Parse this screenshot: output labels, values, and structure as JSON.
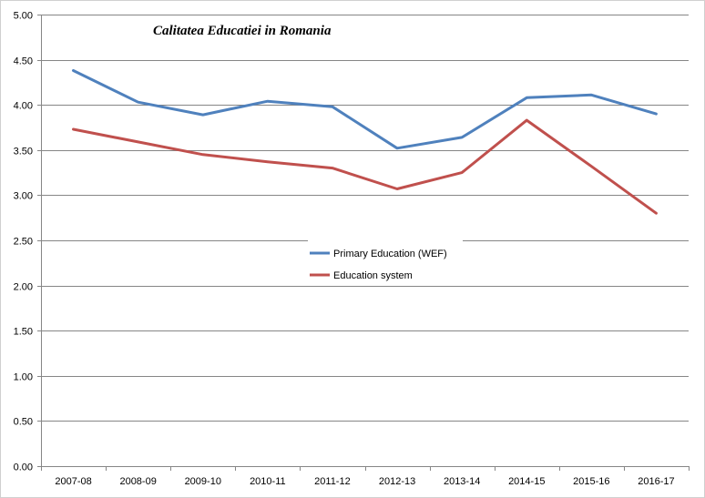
{
  "chart_data": {
    "type": "line",
    "title": "Calitatea Educatiei in Romania",
    "categories": [
      "2007-08",
      "2008-09",
      "2009-10",
      "2010-11",
      "2011-12",
      "2012-13",
      "2013-14",
      "2014-15",
      "2015-16",
      "2016-17"
    ],
    "series": [
      {
        "name": "Primary Education  (WEF)",
        "color": "#4F81BD",
        "values": [
          4.38,
          4.03,
          3.89,
          4.04,
          3.98,
          3.52,
          3.64,
          4.08,
          4.11,
          3.9
        ]
      },
      {
        "name": "Education system",
        "color": "#C0504D",
        "values": [
          3.73,
          3.59,
          3.45,
          3.37,
          3.3,
          3.07,
          3.25,
          3.83,
          3.32,
          2.8
        ]
      }
    ],
    "ylim": [
      0,
      5
    ],
    "yticks": [
      "0.00",
      "0.50",
      "1.00",
      "1.50",
      "2.00",
      "2.50",
      "3.00",
      "3.50",
      "4.00",
      "4.50",
      "5.00"
    ],
    "grid": true,
    "legend_position": "center"
  }
}
